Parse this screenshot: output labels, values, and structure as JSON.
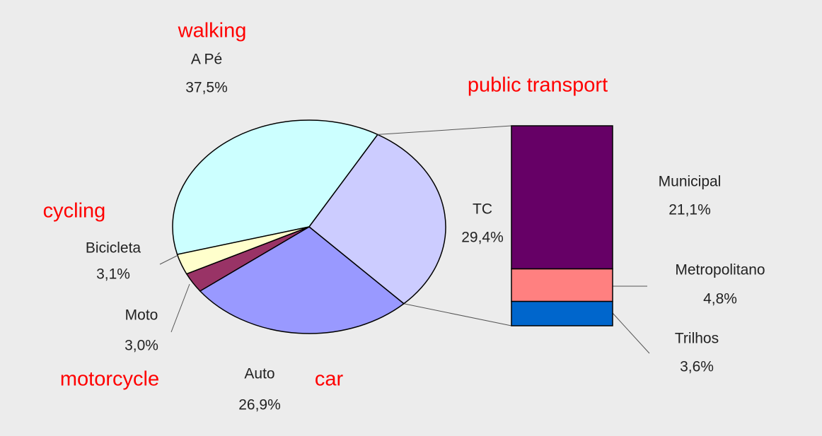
{
  "chart_data": [
    {
      "type": "pie",
      "categories": [
        "A Pé",
        "TC",
        "Auto",
        "Moto",
        "Bicicleta"
      ],
      "values": [
        37.5,
        29.4,
        26.9,
        3.0,
        3.1
      ],
      "value_labels": [
        "37,5%",
        "29,4%",
        "26,9%",
        "3,0%",
        "3,1%"
      ],
      "colors": [
        "#ccffff",
        "#ccccff",
        "#9999ff",
        "#993366",
        "#ffffcc"
      ],
      "annotations": [
        "walking",
        "public transport",
        "car",
        "motorcycle",
        "cycling"
      ],
      "annotation_color": "#ff0000"
    },
    {
      "type": "stacked-bar",
      "categories": [
        "Municipal",
        "Metropolitano",
        "Trilhos"
      ],
      "values": [
        21.1,
        4.8,
        3.6
      ],
      "value_labels": [
        "21,1%",
        "4,8%",
        "3,6%"
      ],
      "colors": [
        "#660066",
        "#ff8080",
        "#0066cc"
      ]
    }
  ]
}
